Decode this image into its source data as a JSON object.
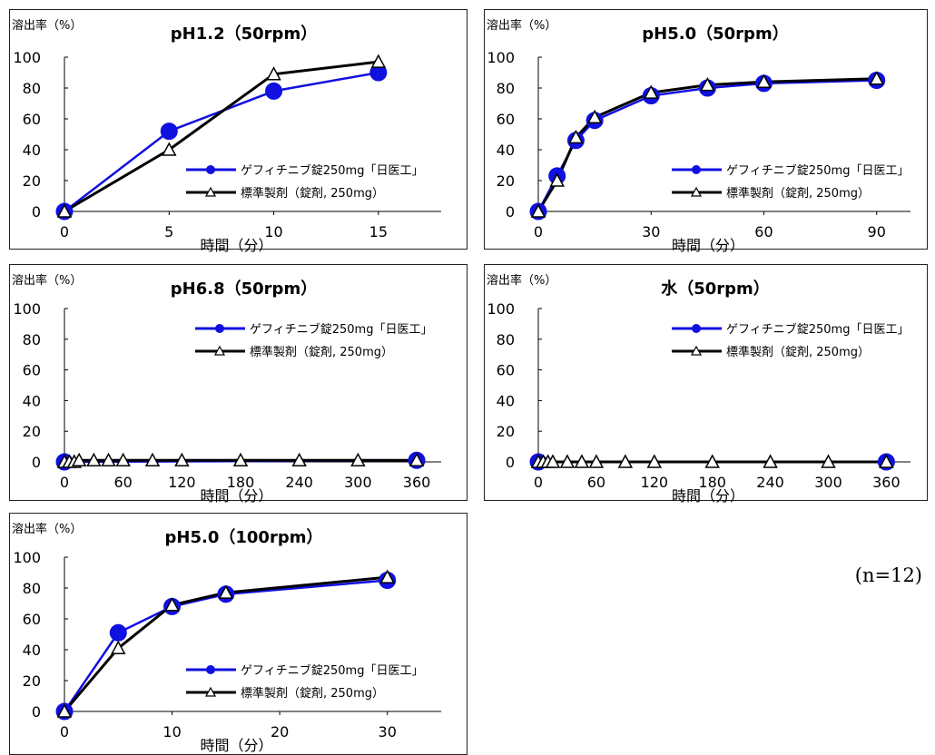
{
  "footnote": "(n=12)",
  "legend": {
    "test": "ゲフィチニブ錠250mg「日医工」",
    "ref": "標準製剤（錠剤, 250mg）"
  },
  "colors": {
    "test": "#1010e0",
    "ref": "#000000",
    "frame": "#222222"
  },
  "chart_data": [
    {
      "type": "line",
      "title": "pH1.2（50rpm）",
      "ylabel": "溶出率（%）",
      "xlabel": "時間（分）",
      "ylim": [
        0,
        100
      ],
      "yticks": [
        0,
        20,
        40,
        60,
        80,
        100
      ],
      "xlim": [
        0,
        18
      ],
      "xticks": [
        0,
        5,
        10,
        15
      ],
      "legend_position": "bottom-right",
      "series": [
        {
          "name": "ゲフィチニブ錠250mg「日医工」",
          "marker": "circle",
          "x": [
            0,
            5,
            10,
            15
          ],
          "y": [
            0,
            52,
            78,
            90
          ]
        },
        {
          "name": "標準製剤（錠剤, 250mg）",
          "marker": "triangle",
          "x": [
            0,
            5,
            10,
            15
          ],
          "y": [
            0,
            40,
            89,
            97
          ]
        }
      ]
    },
    {
      "type": "line",
      "title": "pH5.0（50rpm）",
      "ylabel": "溶出率（%）",
      "xlabel": "時間（分）",
      "ylim": [
        0,
        100
      ],
      "yticks": [
        0,
        20,
        40,
        60,
        80,
        100
      ],
      "xlim": [
        0,
        99
      ],
      "xticks": [
        0,
        30,
        60,
        90
      ],
      "legend_position": "bottom-right",
      "series": [
        {
          "name": "ゲフィチニブ錠250mg「日医工」",
          "marker": "circle",
          "x": [
            0,
            5,
            10,
            15,
            30,
            45,
            60,
            90
          ],
          "y": [
            0,
            23,
            46,
            59,
            75,
            80,
            83,
            85
          ]
        },
        {
          "name": "標準製剤（錠剤, 250mg）",
          "marker": "triangle",
          "x": [
            0,
            5,
            10,
            15,
            30,
            45,
            60,
            90
          ],
          "y": [
            0,
            20,
            48,
            61,
            77,
            82,
            84,
            86
          ]
        }
      ]
    },
    {
      "type": "line",
      "title": "pH6.8（50rpm）",
      "ylabel": "溶出率（%）",
      "xlabel": "時間（分）",
      "ylim": [
        0,
        100
      ],
      "yticks": [
        0,
        20,
        40,
        60,
        80,
        100
      ],
      "xlim": [
        0,
        385
      ],
      "xticks": [
        0,
        60,
        120,
        180,
        240,
        300,
        360
      ],
      "legend_position": "top-right",
      "series": [
        {
          "name": "ゲフィチニブ錠250mg「日医工」",
          "marker": "circle",
          "x": [
            0,
            360
          ],
          "y": [
            0,
            1
          ]
        },
        {
          "name": "標準製剤（錠剤, 250mg）",
          "marker": "triangle",
          "x": [
            0,
            5,
            10,
            15,
            30,
            45,
            60,
            90,
            120,
            180,
            240,
            300,
            360
          ],
          "y": [
            0,
            0,
            0,
            1,
            1,
            1,
            1,
            1,
            1,
            1,
            1,
            1,
            1
          ]
        }
      ]
    },
    {
      "type": "line",
      "title": "水（50rpm）",
      "ylabel": "溶出率（%）",
      "xlabel": "時間（分）",
      "ylim": [
        0,
        100
      ],
      "yticks": [
        0,
        20,
        40,
        60,
        80,
        100
      ],
      "xlim": [
        0,
        385
      ],
      "xticks": [
        0,
        60,
        120,
        180,
        240,
        300,
        360
      ],
      "legend_position": "top-right",
      "series": [
        {
          "name": "ゲフィチニブ錠250mg「日医工」",
          "marker": "circle",
          "x": [
            0,
            360
          ],
          "y": [
            0,
            0
          ]
        },
        {
          "name": "標準製剤（錠剤, 250mg）",
          "marker": "triangle",
          "x": [
            0,
            5,
            10,
            15,
            30,
            45,
            60,
            90,
            120,
            180,
            240,
            300,
            360
          ],
          "y": [
            0,
            0,
            0,
            0,
            0,
            0,
            0,
            0,
            0,
            0,
            0,
            0,
            0
          ]
        }
      ]
    },
    {
      "type": "line",
      "title": "pH5.0（100rpm）",
      "ylabel": "溶出率（%）",
      "xlabel": "時間（分）",
      "ylim": [
        0,
        100
      ],
      "yticks": [
        0,
        20,
        40,
        60,
        80,
        100
      ],
      "xlim": [
        0,
        35
      ],
      "xticks": [
        0,
        10,
        20,
        30
      ],
      "legend_position": "bottom-right",
      "series": [
        {
          "name": "ゲフィチニブ錠250mg「日医工」",
          "marker": "circle",
          "x": [
            0,
            5,
            10,
            15,
            30
          ],
          "y": [
            0,
            51,
            68,
            76,
            85
          ]
        },
        {
          "name": "標準製剤（錠剤, 250mg）",
          "marker": "triangle",
          "x": [
            0,
            5,
            10,
            15,
            30
          ],
          "y": [
            0,
            41,
            69,
            77,
            87
          ]
        }
      ]
    }
  ]
}
